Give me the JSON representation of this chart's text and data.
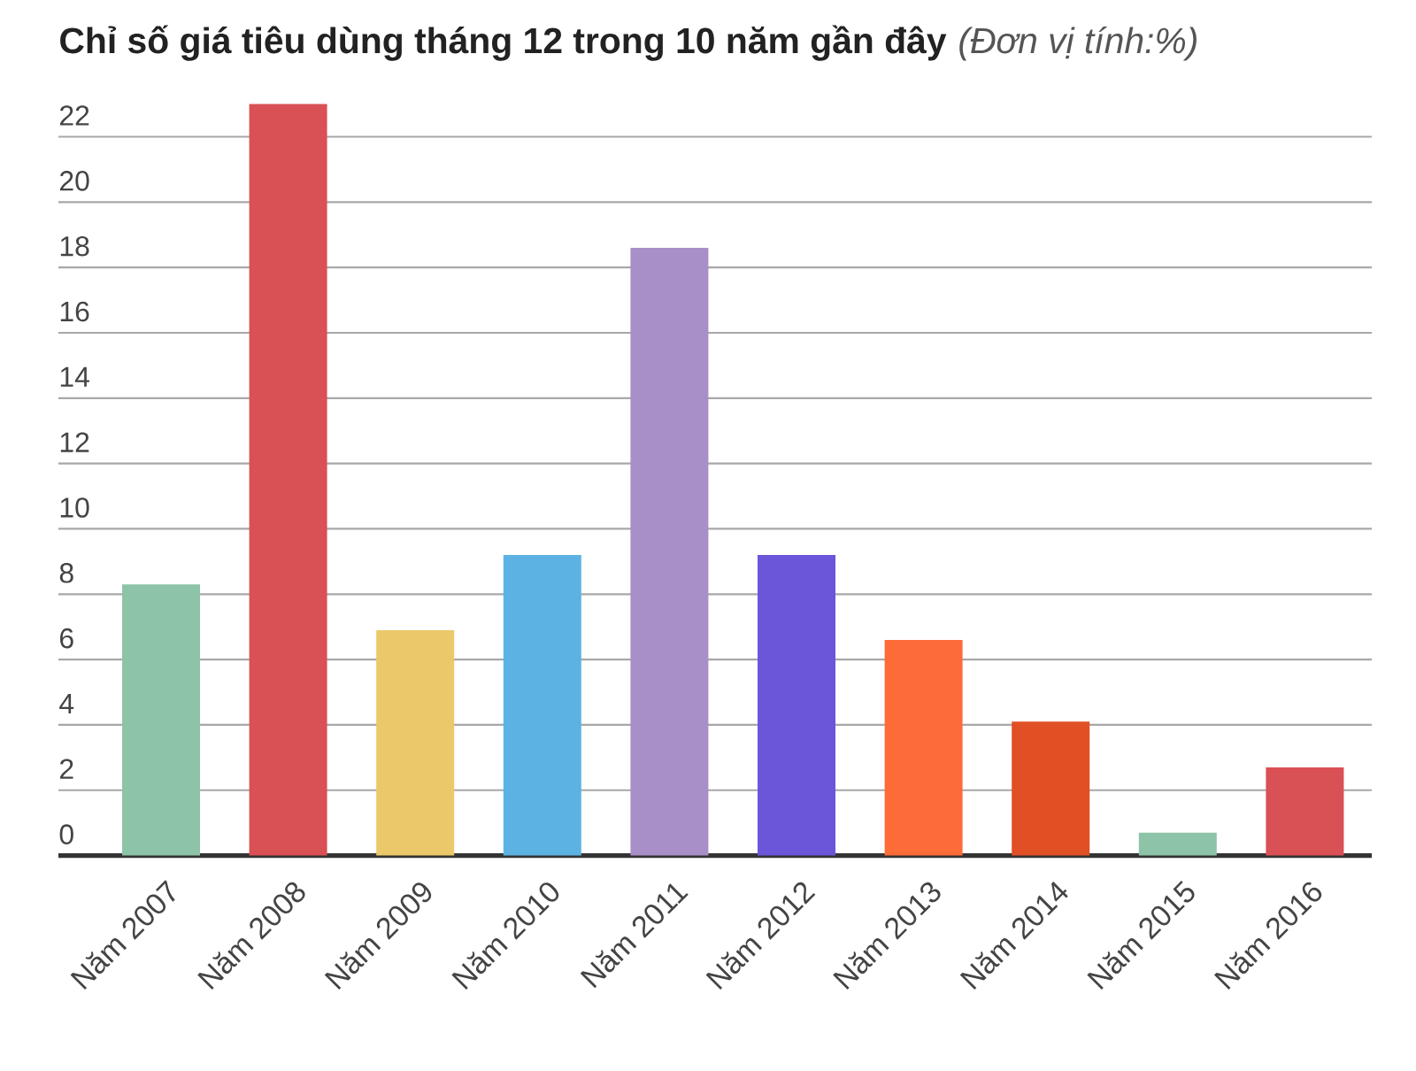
{
  "chart_data": {
    "type": "bar",
    "title": "Chỉ số giá tiêu dùng tháng 12 trong 10 năm gần đây",
    "subtitle": "(Đơn vị tính:%)",
    "categories": [
      "Năm 2007",
      "Năm 2008",
      "Năm 2009",
      "Năm 2010",
      "Năm 2011",
      "Năm 2012",
      "Năm 2013",
      "Năm 2014",
      "Năm 2015",
      "Năm 2016"
    ],
    "values": [
      8.3,
      23.0,
      6.9,
      9.2,
      18.6,
      9.2,
      6.6,
      4.1,
      0.7,
      2.7
    ],
    "colors": [
      "#8dc3a7",
      "#d95055",
      "#ebc86a",
      "#5cb3e3",
      "#a98fc7",
      "#6b55d8",
      "#fc6b38",
      "#e05024",
      "#8dc3a7",
      "#d95055"
    ],
    "ylim": [
      0,
      23
    ],
    "yticks": [
      0,
      2,
      4,
      6,
      8,
      10,
      12,
      14,
      16,
      18,
      20,
      22
    ],
    "grid": "y"
  }
}
